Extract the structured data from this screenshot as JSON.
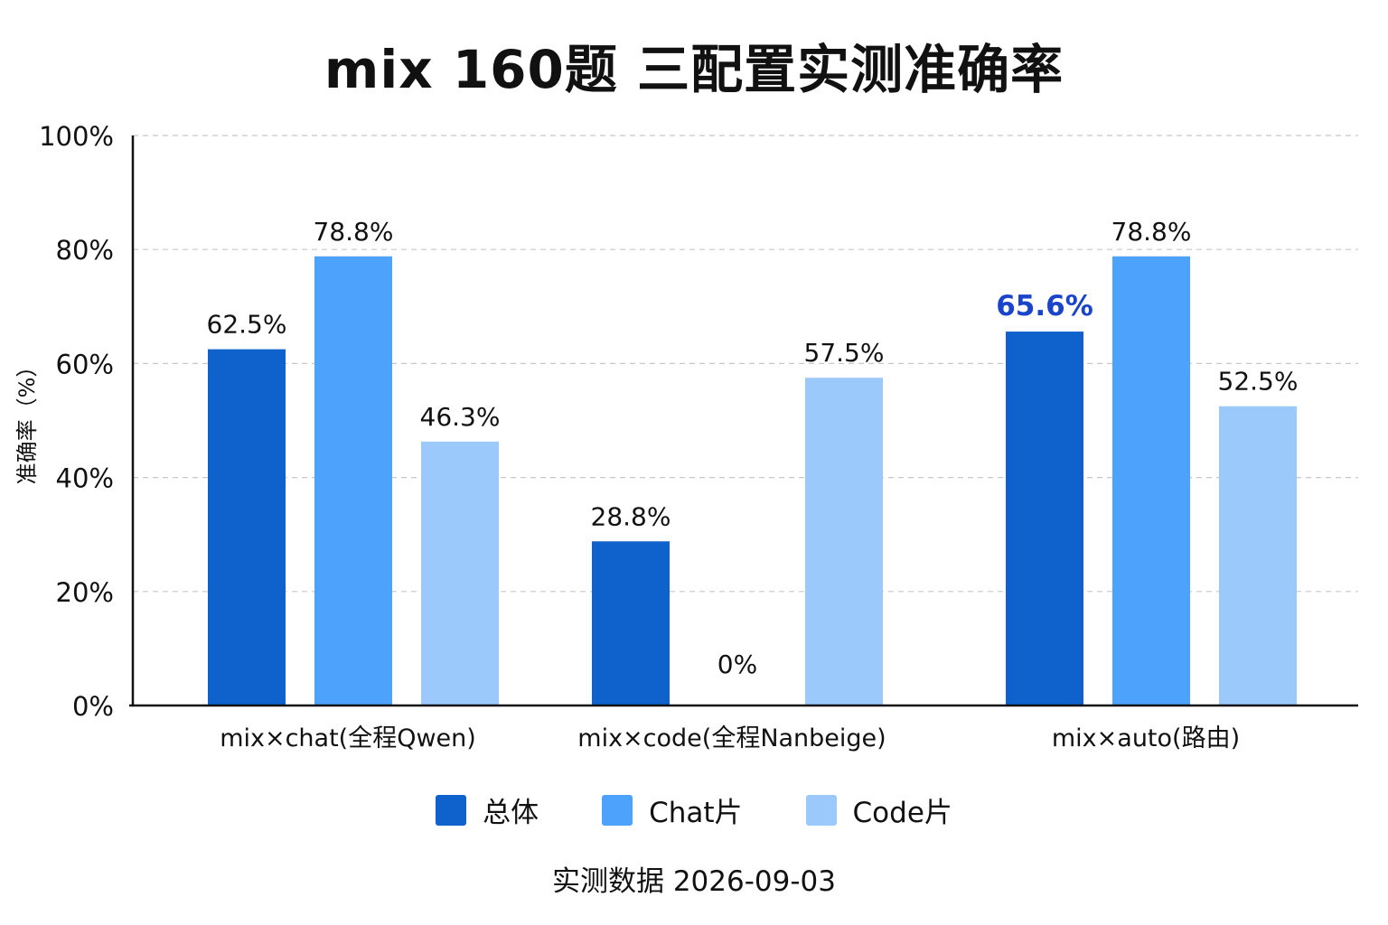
{
  "chart_data": {
    "type": "bar",
    "title": "mix 160题 三配置实测准确率",
    "ylabel": "准确率（%）",
    "xlabel": "",
    "ylim": [
      0,
      100
    ],
    "yticks": [
      "0%",
      "20%",
      "40%",
      "60%",
      "80%",
      "100%"
    ],
    "grid": true,
    "legend_position": "bottom",
    "categories": [
      "mix×chat(全程Qwen)",
      "mix×code(全程Nanbeige)",
      "mix×auto(路由)"
    ],
    "series": [
      {
        "name": "总体",
        "color": "#0f62cc",
        "values": [
          62.5,
          28.8,
          65.6
        ],
        "labels": [
          "62.5%",
          "28.8%",
          "65.6%"
        ]
      },
      {
        "name": "Chat片",
        "color": "#4da3fb",
        "values": [
          78.8,
          0,
          78.8
        ],
        "labels": [
          "78.8%",
          "0%",
          "78.8%"
        ]
      },
      {
        "name": "Code片",
        "color": "#9cc9fb",
        "values": [
          46.3,
          57.5,
          52.5
        ],
        "labels": [
          "46.3%",
          "57.5%",
          "52.5%"
        ]
      }
    ],
    "highlight": {
      "series": 0,
      "category": 2,
      "color": "#1a44c9"
    },
    "footnote": "实测数据  2026-09-03"
  }
}
